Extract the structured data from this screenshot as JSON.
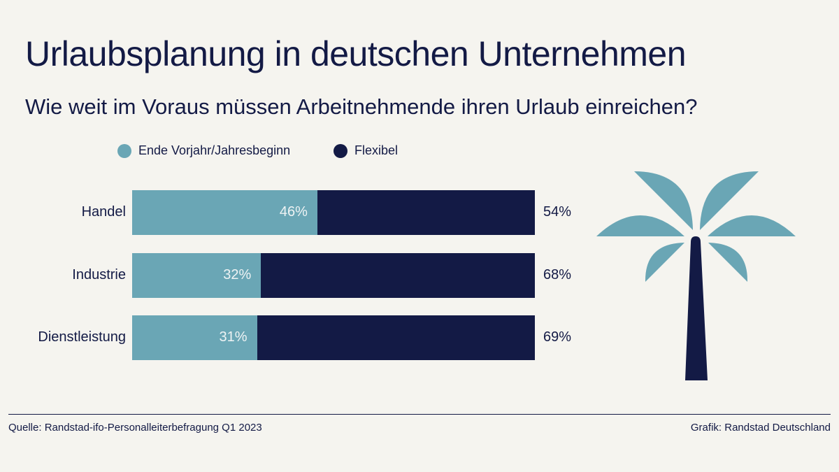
{
  "chart_data": {
    "type": "bar",
    "stacked": true,
    "orientation": "horizontal",
    "title": "Urlaubsplanung in deutschen Unternehmen",
    "subtitle": "Wie weit im Voraus müssen Arbeitnehmende ihren Urlaub einreichen?",
    "categories": [
      "Handel",
      "Industrie",
      "Dienstleistung"
    ],
    "series": [
      {
        "name": "Ende Vorjahr/Jahresbeginn",
        "color": "#6aa6b5",
        "values": [
          46,
          32,
          31
        ],
        "labels": [
          "46%",
          "32%",
          "31%"
        ]
      },
      {
        "name": "Flexibel",
        "color": "#131a45",
        "values": [
          54,
          68,
          69
        ],
        "labels": [
          "54%",
          "68%",
          "69%"
        ]
      }
    ],
    "xlim": [
      0,
      100
    ],
    "grid": false,
    "legend": "top"
  },
  "footer": {
    "source": "Quelle: Randstad-ifo-Personalleiterbefragung Q1 2023",
    "credit": "Grafik: Randstad Deutschland"
  },
  "decoration": {
    "icon": "palm-tree-icon"
  }
}
